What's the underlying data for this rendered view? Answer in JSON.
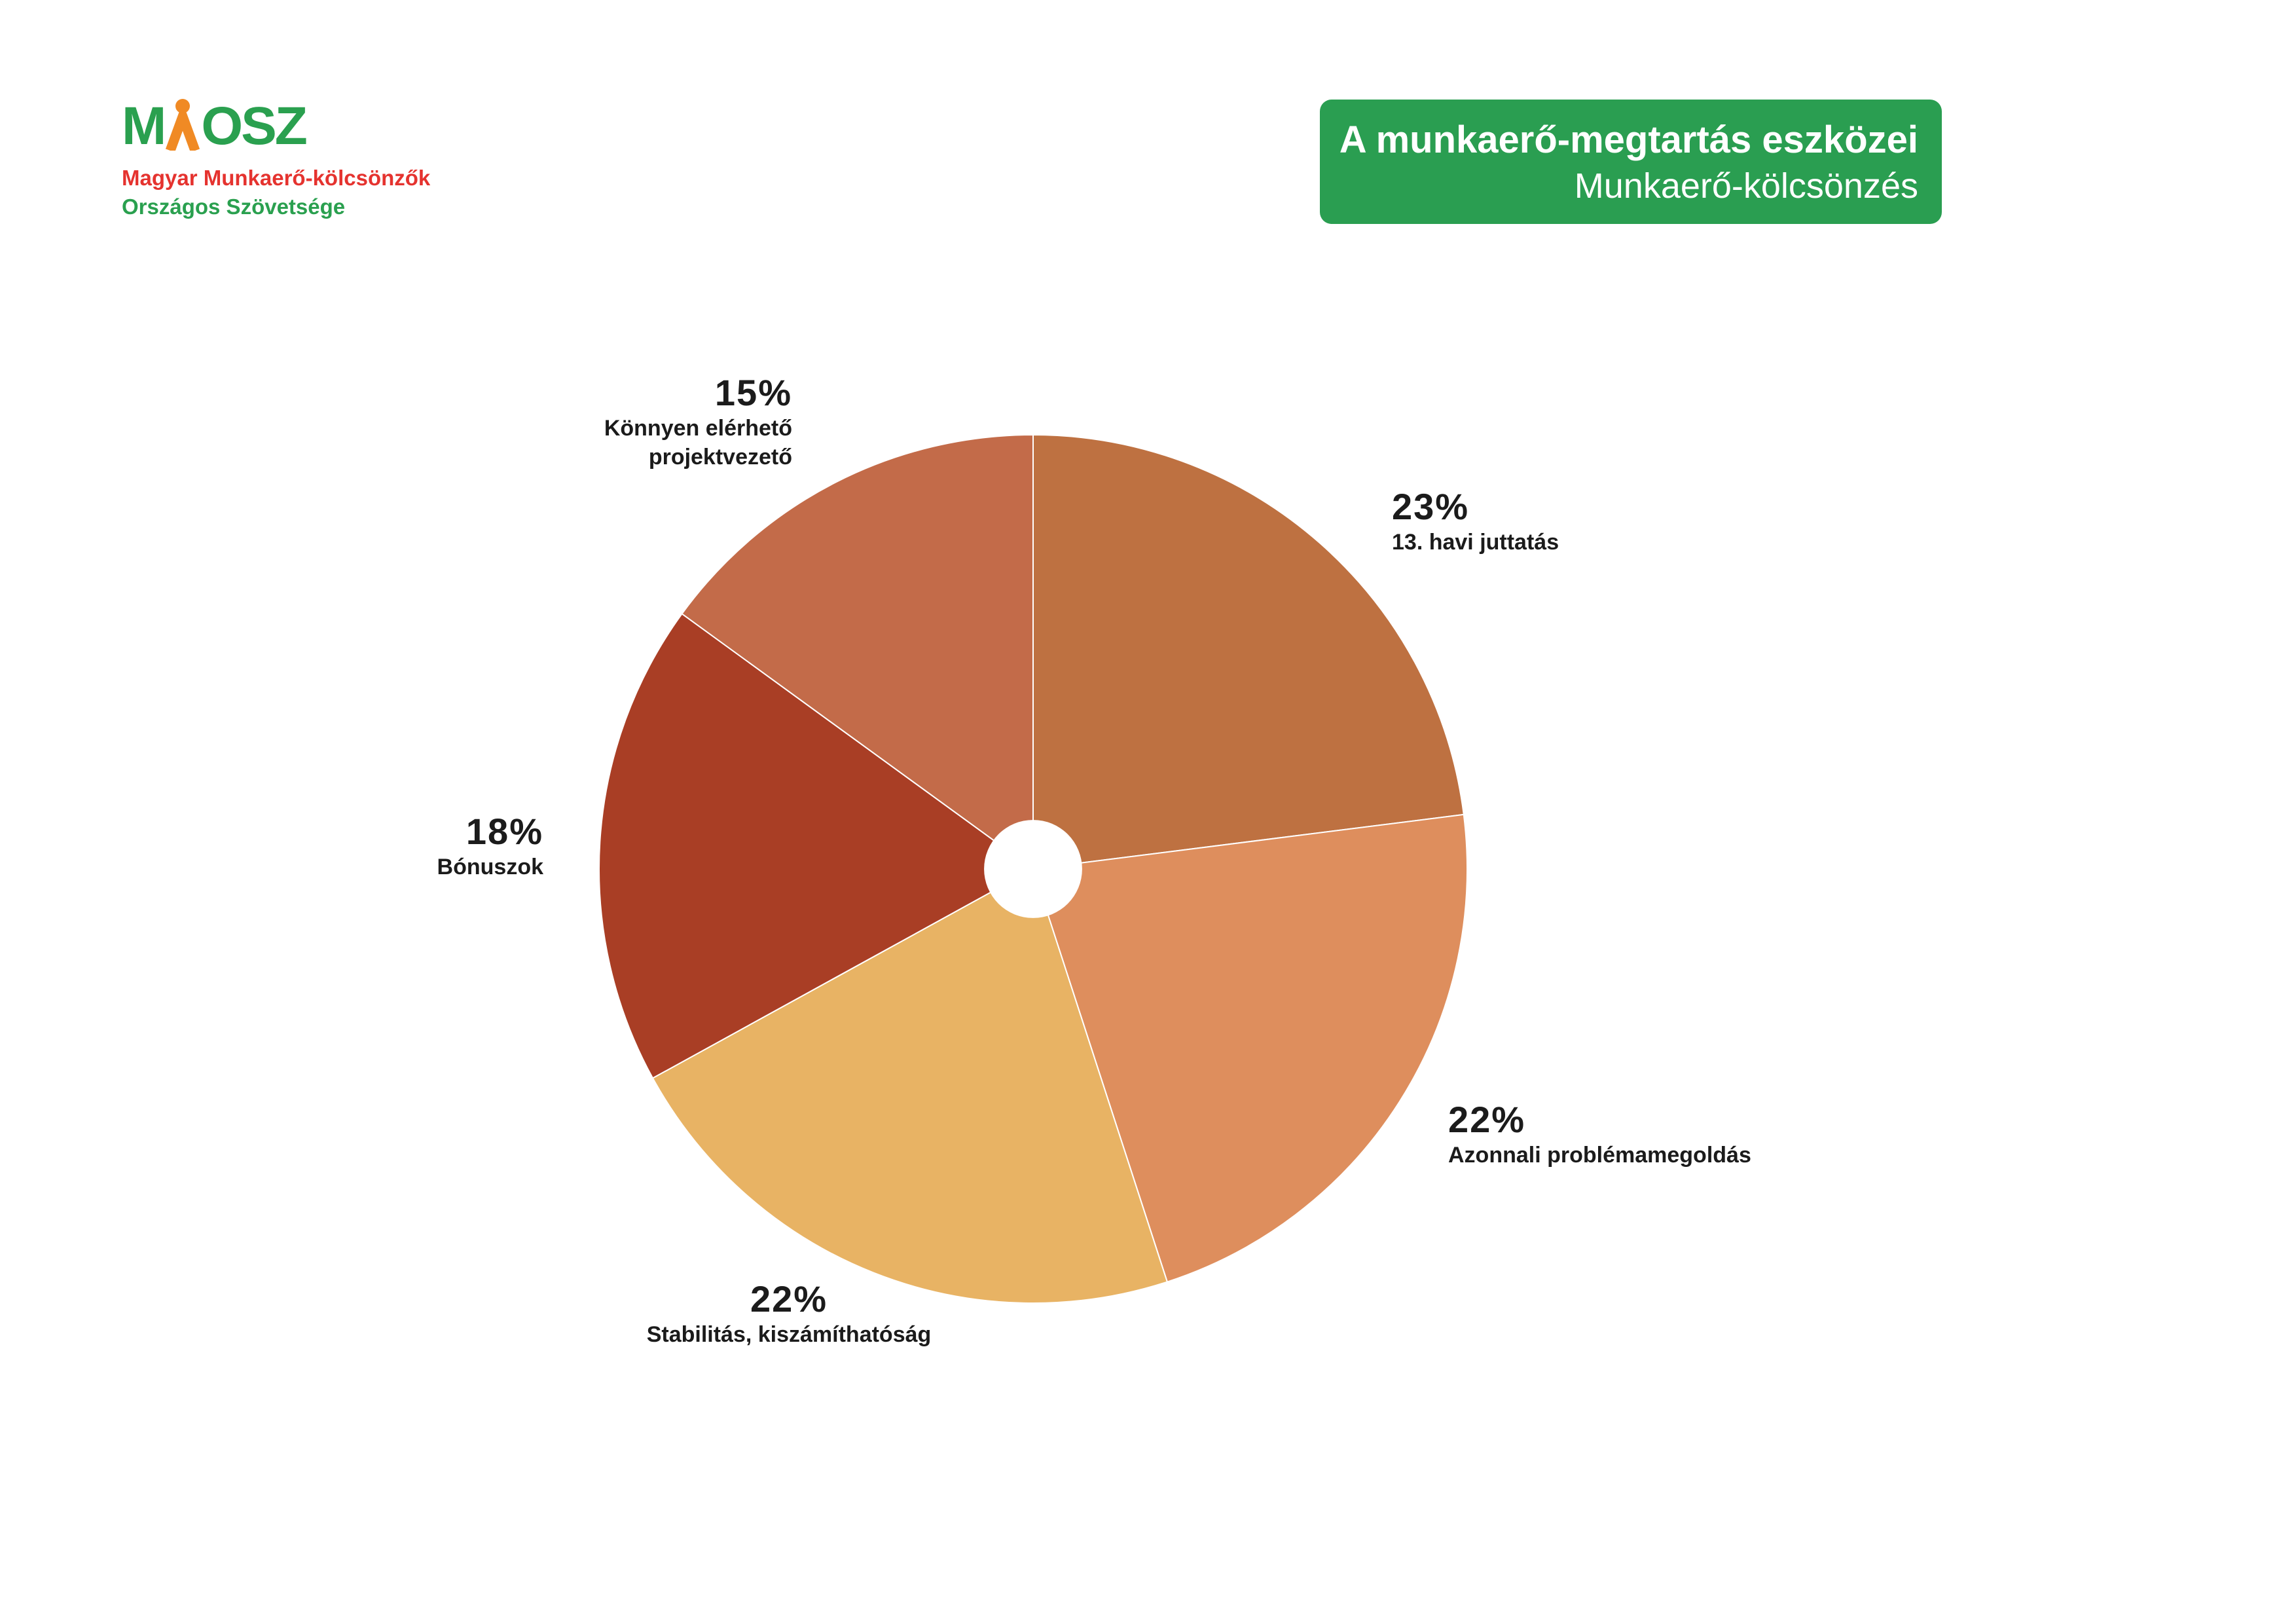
{
  "logo": {
    "prefix": "M",
    "suffix": "OSZ",
    "subtitle1": "Magyar Munkaerő-kölcsönzők",
    "subtitle2": "Országos Szövetsége",
    "green": "#2aa04f",
    "red": "#e5332f",
    "orange": "#f08a24"
  },
  "banner": {
    "title": "A munkaerő-megtartás eszközei",
    "subtitle": "Munkaerő-kölcsönzés",
    "background": "#2a9e51"
  },
  "chart_data": {
    "type": "pie",
    "title": "A munkaerő-megtartás eszközei — Munkaerő-kölcsönzés",
    "start_angle_deg": 0,
    "direction": "clockwise",
    "hole_ratio": 0.113,
    "hole_color": "#ffffff",
    "slices": [
      {
        "label": "13. havi juttatás",
        "pct": "23%",
        "value": 23,
        "color": "#be7141"
      },
      {
        "label": "Azonnali problémamegoldás",
        "pct": "22%",
        "value": 22,
        "color": "#de8e5d"
      },
      {
        "label": "Stabilitás, kiszámíthatóság",
        "pct": "22%",
        "value": 22,
        "color": "#e8b364"
      },
      {
        "label": "Bónuszok",
        "pct": "18%",
        "value": 18,
        "color": "#a93e25"
      },
      {
        "label": "Könnyen elérhető projektvezető",
        "pct": "15%",
        "value": 15,
        "color": "#c36b49"
      }
    ]
  }
}
